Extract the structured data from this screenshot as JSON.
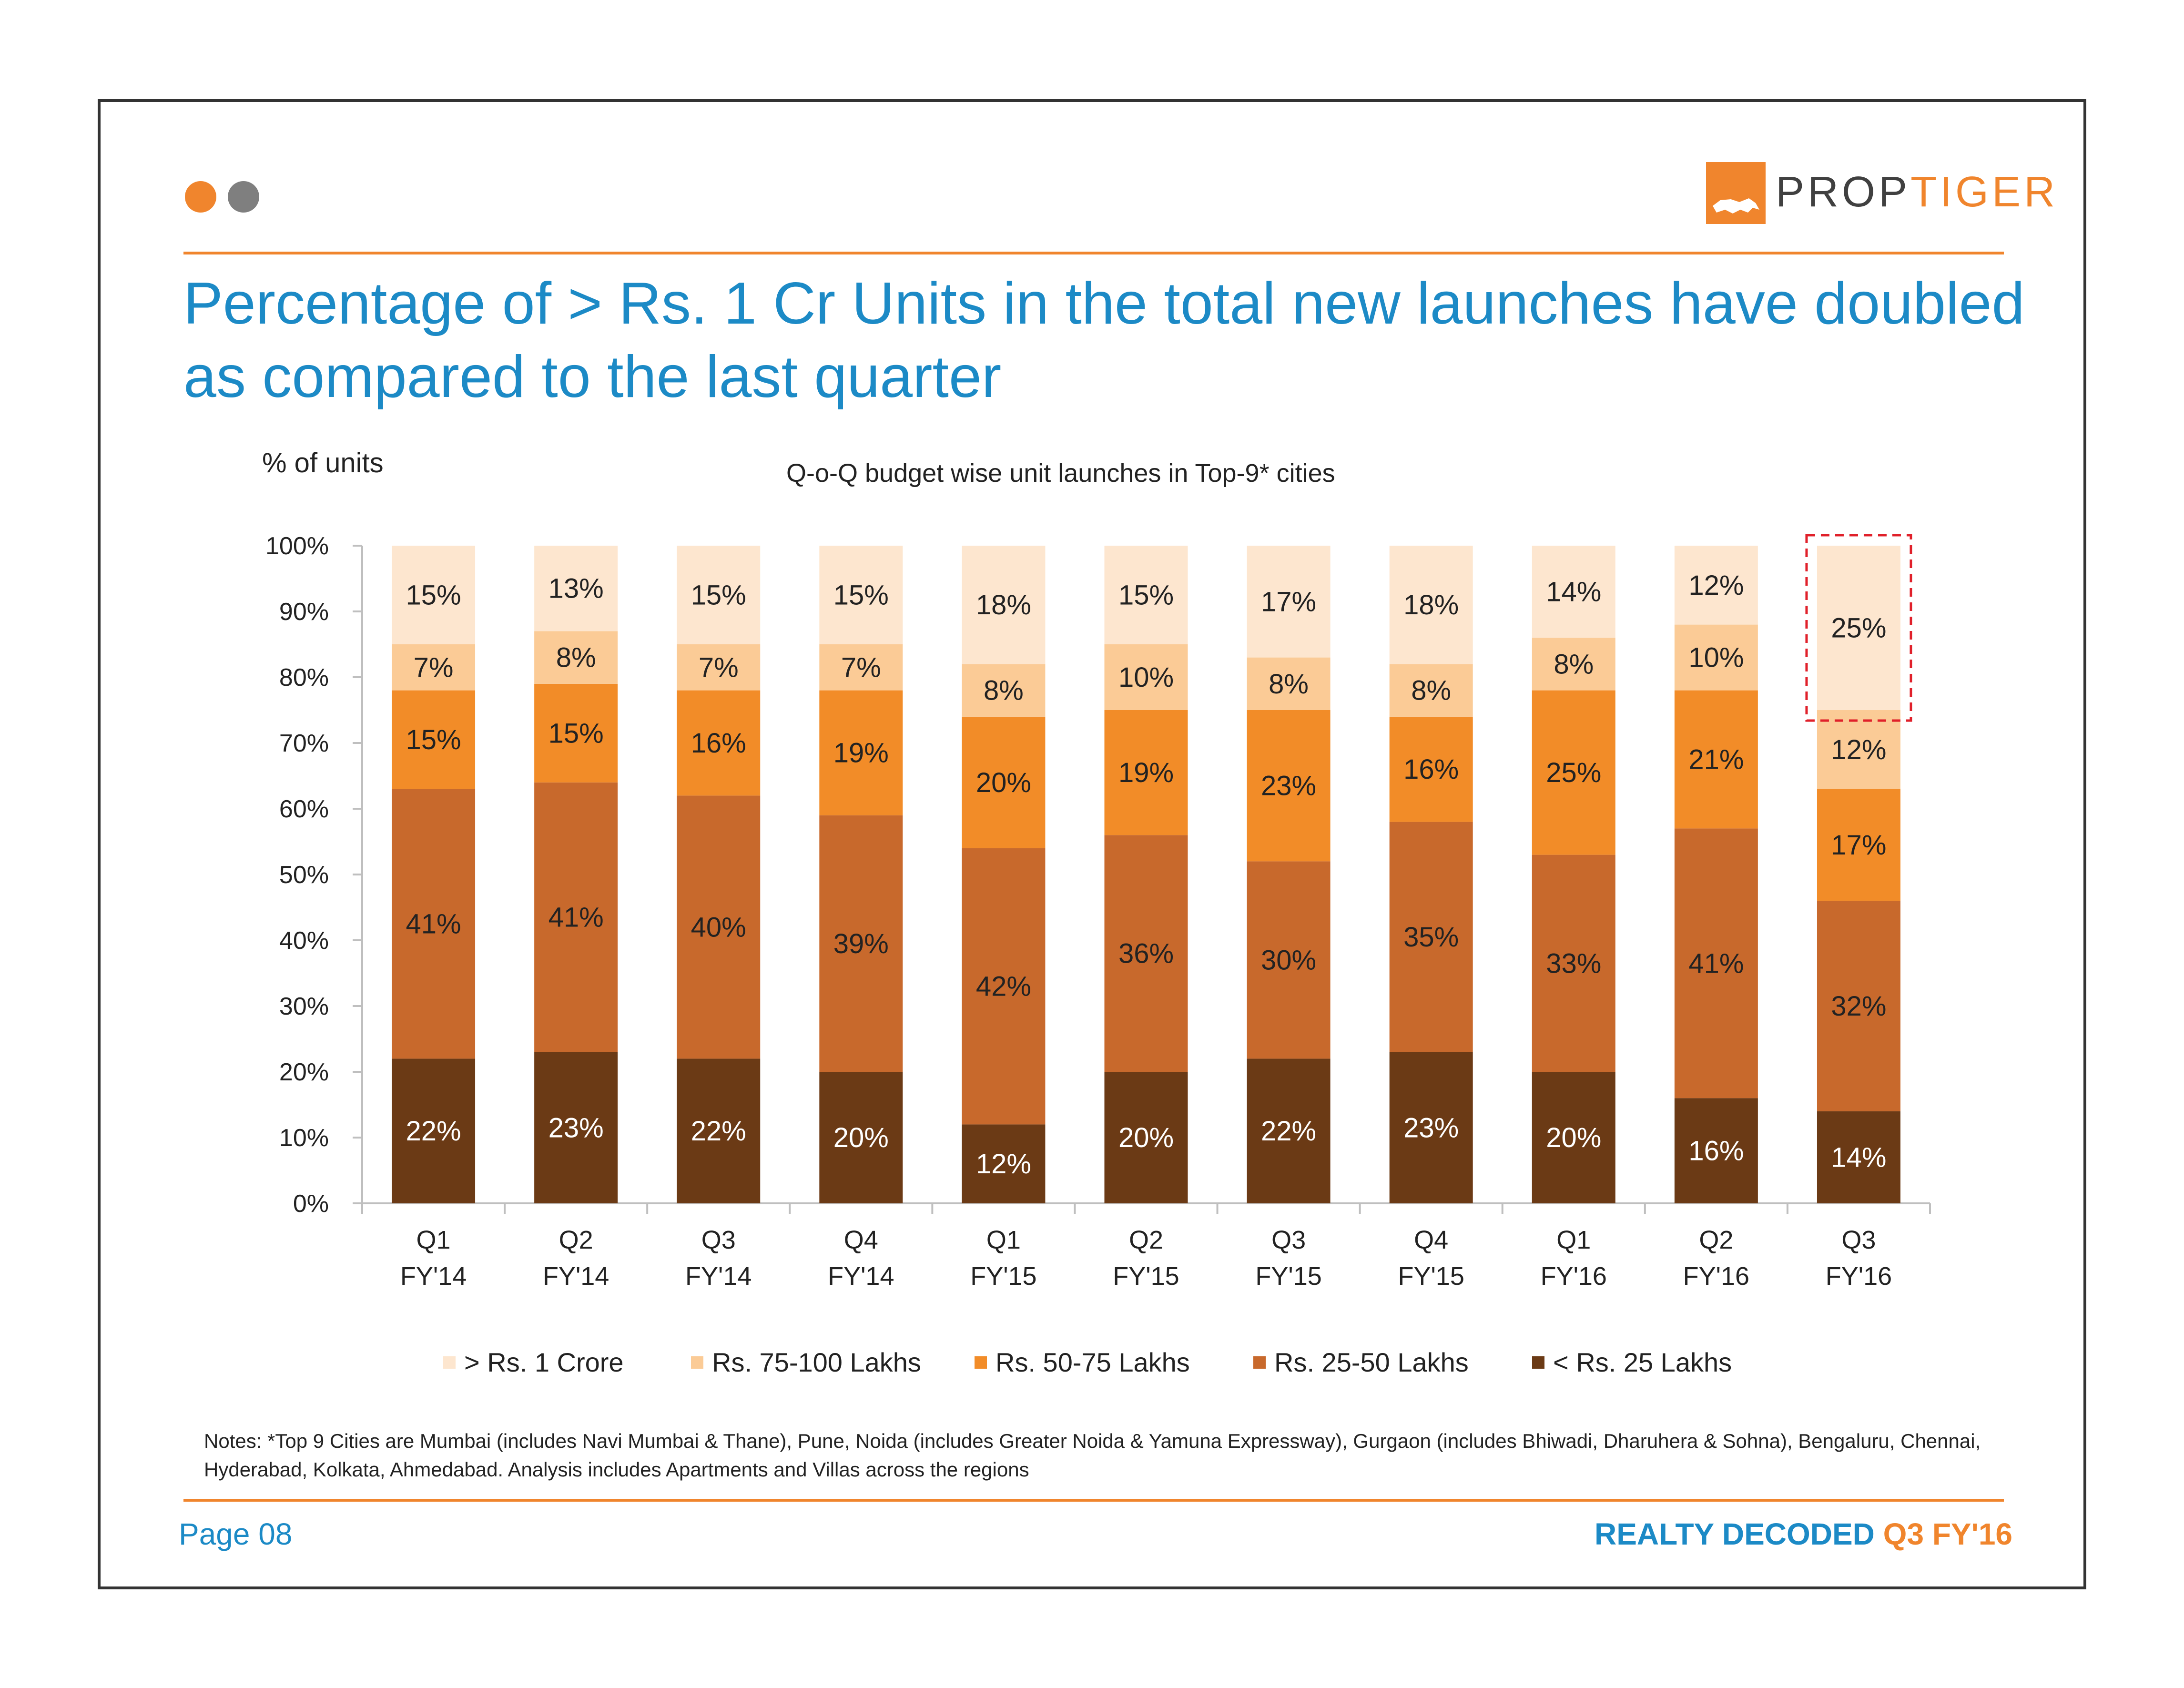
{
  "header": {
    "dots": [
      {
        "name": "dot-orange",
        "color": "#f0852d"
      },
      {
        "name": "dot-grey",
        "color": "#7f7f7f"
      }
    ],
    "logo": {
      "icon": "tiger-icon",
      "text_part1": "PROP",
      "text_part2": "TIGER",
      "color_part1": "#404040",
      "color_part2": "#f0852d"
    }
  },
  "title": "Percentage of > Rs. 1 Cr Units in the total new launches have doubled as compared to the last quarter",
  "units_label": "% of units",
  "chart_data": {
    "type": "bar",
    "stacked": true,
    "title": "Q-o-Q budget wise unit launches in Top-9* cities",
    "ylabel": "% of units",
    "ylim": [
      0,
      100
    ],
    "yticks": [
      "0%",
      "10%",
      "20%",
      "30%",
      "40%",
      "50%",
      "60%",
      "70%",
      "80%",
      "90%",
      "100%"
    ],
    "categories": [
      [
        "Q1",
        "FY'14"
      ],
      [
        "Q2",
        "FY'14"
      ],
      [
        "Q3",
        "FY'14"
      ],
      [
        "Q4",
        "FY'14"
      ],
      [
        "Q1",
        "FY'15"
      ],
      [
        "Q2",
        "FY'15"
      ],
      [
        "Q3",
        "FY'15"
      ],
      [
        "Q4",
        "FY'15"
      ],
      [
        "Q1",
        "FY'16"
      ],
      [
        "Q2",
        "FY'16"
      ],
      [
        "Q3",
        "FY'16"
      ]
    ],
    "series": [
      {
        "name": "< Rs. 25 Lakhs",
        "color": "#6b3a15",
        "label_color": "#ffffff",
        "values": [
          22,
          23,
          22,
          20,
          12,
          20,
          22,
          23,
          20,
          16,
          14
        ]
      },
      {
        "name": "Rs. 25-50 Lakhs",
        "color": "#c8692c",
        "label_color": "#222222",
        "values": [
          41,
          41,
          40,
          39,
          42,
          36,
          30,
          35,
          33,
          41,
          32
        ]
      },
      {
        "name": "Rs. 50-75 Lakhs",
        "color": "#f28c28",
        "label_color": "#222222",
        "values": [
          15,
          15,
          16,
          19,
          20,
          19,
          23,
          16,
          25,
          21,
          17
        ]
      },
      {
        "name": "Rs. 75-100 Lakhs",
        "color": "#fbcb96",
        "label_color": "#222222",
        "values": [
          7,
          8,
          7,
          7,
          8,
          10,
          8,
          8,
          8,
          10,
          12
        ]
      },
      {
        "name": "> Rs. 1 Crore",
        "color": "#fde6cf",
        "label_color": "#222222",
        "values": [
          15,
          13,
          15,
          15,
          18,
          15,
          17,
          18,
          14,
          12,
          25
        ]
      }
    ],
    "highlight": {
      "category_index": 10,
      "series": "> Rs. 1 Crore",
      "style": "dashed-red-box",
      "color": "#e0202a"
    },
    "legend_order": [
      "> Rs. 1 Crore",
      "Rs. 75-100 Lakhs",
      "Rs. 50-75 Lakhs",
      "Rs. 25-50 Lakhs",
      "< Rs. 25 Lakhs"
    ],
    "legend_position": "bottom",
    "grid": false
  },
  "notes": "Notes: *Top 9 Cities are Mumbai (includes Navi Mumbai & Thane), Pune, Noida (includes Greater Noida & Yamuna Expressway), Gurgaon (includes Bhiwadi, Dharuhera & Sohna), Bengaluru, Chennai, Hyderabad, Kolkata, Ahmedabad. Analysis includes Apartments and Villas across the regions",
  "footer": {
    "page": "Page 08",
    "brand_part1": "REALTY DECODED",
    "brand_part2": "Q3 FY'16",
    "color_part1": "#1c8ac6",
    "color_part2": "#f0852d"
  }
}
